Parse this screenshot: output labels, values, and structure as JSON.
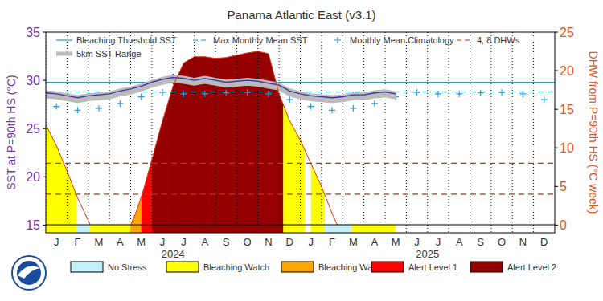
{
  "chart_data": {
    "type": "line",
    "title": "Panama Atlantic East (v3.1)",
    "y_label": "SST at P=90th HS (°C)",
    "y2_label": "DHW from P=90th HS (°C week)",
    "xlim": [
      0,
      24
    ],
    "xticks": [
      {
        "value": 0,
        "label": "J"
      },
      {
        "value": 1,
        "label": "F"
      },
      {
        "value": 2,
        "label": "M"
      },
      {
        "value": 3,
        "label": "A"
      },
      {
        "value": 4,
        "label": "M"
      },
      {
        "value": 5,
        "label": "J"
      },
      {
        "value": 6,
        "label": "J"
      },
      {
        "value": 7,
        "label": "A"
      },
      {
        "value": 8,
        "label": "S"
      },
      {
        "value": 9,
        "label": "O"
      },
      {
        "value": 10,
        "label": "N"
      },
      {
        "value": 11,
        "label": "D"
      },
      {
        "value": 12,
        "label": "J"
      },
      {
        "value": 13,
        "label": "F"
      },
      {
        "value": 14,
        "label": "M"
      },
      {
        "value": 15,
        "label": "A"
      },
      {
        "value": 16,
        "label": "M"
      },
      {
        "value": 17,
        "label": "J"
      },
      {
        "value": 18,
        "label": "J"
      },
      {
        "value": 19,
        "label": "A"
      },
      {
        "value": 20,
        "label": "S"
      },
      {
        "value": 21,
        "label": "O"
      },
      {
        "value": 22,
        "label": "N"
      },
      {
        "value": 23,
        "label": "D"
      }
    ],
    "ylim": [
      14.2,
      35
    ],
    "yticks": [
      15,
      20,
      25,
      30,
      35
    ],
    "y2lim": [
      -1,
      25
    ],
    "y2ticks": [
      0,
      5,
      10,
      15,
      20,
      25
    ],
    "grid": true,
    "year_labels": [
      {
        "label": "2024",
        "x": 6
      },
      {
        "label": "2025",
        "x": 18
      }
    ],
    "series": [
      {
        "name": "Bleaching Threshold SST",
        "type": "hline",
        "color": "#1aa6b7",
        "line_style": "solid",
        "values": [
          29.8
        ]
      },
      {
        "name": "Max Monthly Mean SST",
        "type": "hline",
        "color": "#1aa6b7",
        "line_style": "dashed",
        "values": [
          28.8
        ]
      },
      {
        "name": "Monthly Mean Climatology",
        "type": "scatter",
        "marker": "plus",
        "color": "#3399dd",
        "x": [
          0.5,
          1.5,
          2.5,
          3.5,
          4.5,
          5.5,
          6.5,
          7.5,
          8.5,
          9.5,
          10.5,
          11.5,
          12.5,
          13.5,
          14.5,
          15.5,
          16.5,
          17.5,
          18.5,
          19.5,
          20.5,
          21.5,
          22.5,
          23.5
        ],
        "values": [
          27.3,
          26.9,
          27.1,
          27.6,
          28.3,
          28.75,
          28.6,
          28.6,
          28.7,
          28.75,
          28.6,
          28.0,
          27.3,
          26.9,
          27.1,
          27.6,
          28.3,
          28.75,
          28.6,
          28.6,
          28.7,
          28.75,
          28.6,
          28.0
        ]
      },
      {
        "name": "4, 8 DHWs",
        "type": "hline",
        "axis": "y2",
        "color": "#cc3300",
        "line_style": "dashed",
        "values": [
          4,
          8
        ]
      },
      {
        "name": "5km SST Range",
        "type": "band",
        "color": "#bbbbbb",
        "x": [
          0,
          0.5,
          1,
          1.5,
          2,
          2.5,
          3,
          3.5,
          4,
          4.5,
          5,
          5.5,
          6,
          6.5,
          7,
          7.5,
          8,
          8.5,
          9,
          9.5,
          10,
          10.5,
          11,
          11.5,
          12,
          12.5,
          13,
          13.5,
          14,
          14.5,
          15,
          15.5,
          16,
          16.5
        ],
        "values": [
          28.2,
          28.1,
          27.9,
          27.7,
          27.9,
          28.0,
          28.1,
          28.4,
          28.6,
          28.9,
          29.3,
          29.6,
          29.8,
          29.7,
          29.5,
          29.7,
          29.5,
          29.3,
          29.4,
          29.5,
          29.4,
          29.2,
          29.0,
          28.4,
          28.1,
          27.9,
          27.8,
          27.7,
          27.8,
          28.0,
          28.0,
          28.2,
          28.3,
          28.1
        ],
        "values_high": [
          28.9,
          28.8,
          28.6,
          28.4,
          28.6,
          28.7,
          28.8,
          29.1,
          29.3,
          29.6,
          30.0,
          30.3,
          30.5,
          30.4,
          30.2,
          30.4,
          30.2,
          30.0,
          30.1,
          30.2,
          30.1,
          29.9,
          29.7,
          29.1,
          28.8,
          28.6,
          28.5,
          28.4,
          28.5,
          28.7,
          28.7,
          28.9,
          29.0,
          28.8
        ]
      },
      {
        "type": "line",
        "color": "#4433aa",
        "x": [
          0,
          0.5,
          1,
          1.5,
          2,
          2.5,
          3,
          3.5,
          4,
          4.5,
          5,
          5.5,
          6,
          6.5,
          7,
          7.5,
          8,
          8.5,
          9,
          9.5,
          10,
          10.5,
          11,
          11.5,
          12,
          12.5,
          13,
          13.5,
          14,
          14.5,
          15,
          15.5,
          16,
          16.5
        ],
        "values": [
          28.7,
          28.6,
          28.4,
          28.2,
          28.4,
          28.5,
          28.6,
          28.9,
          29.1,
          29.4,
          29.8,
          30.1,
          30.3,
          30.2,
          30.0,
          30.2,
          30.0,
          29.8,
          29.9,
          30.0,
          29.9,
          29.7,
          29.5,
          28.9,
          28.6,
          28.4,
          28.3,
          28.2,
          28.3,
          28.5,
          28.5,
          28.7,
          28.8,
          28.6
        ]
      },
      {
        "type": "line",
        "axis": "y2",
        "color": "#dd3311",
        "x": [
          0,
          0.5,
          1,
          1.5,
          2.1,
          4,
          4.3,
          4.6,
          5,
          5.5,
          6,
          6.5,
          7,
          7.5,
          8,
          8.5,
          9,
          9.5,
          10,
          10.5,
          11,
          11.5,
          12,
          12.5,
          13,
          13.5,
          13.75,
          16.5
        ],
        "values": [
          13,
          10.3,
          7,
          3.5,
          0,
          0,
          2,
          4.5,
          8.5,
          13.5,
          18,
          21,
          21.8,
          21.8,
          21.6,
          21.7,
          22,
          22.3,
          22.5,
          22.2,
          17,
          13.5,
          11,
          8,
          5,
          1.5,
          0,
          0
        ]
      }
    ],
    "status_legend": [
      {
        "name": "No Stress",
        "color": "#c4f0fa"
      },
      {
        "name": "Bleaching Watch",
        "color": "#ffff00"
      },
      {
        "name": "Bleaching Warning",
        "color": "#ffa500"
      },
      {
        "name": "Alert Level 1",
        "color": "#ff0000"
      },
      {
        "name": "Alert Level 2",
        "color": "#960000"
      }
    ],
    "status_periods": [
      {
        "start": 0,
        "end": 1.45,
        "status": "Bleaching Watch"
      },
      {
        "start": 1.45,
        "end": 2.1,
        "status": "No Stress"
      },
      {
        "start": 2.1,
        "end": 4.0,
        "status": "Bleaching Watch"
      },
      {
        "start": 4.0,
        "end": 4.5,
        "status": "Bleaching Warning"
      },
      {
        "start": 4.5,
        "end": 5.0,
        "status": "Alert Level 1"
      },
      {
        "start": 5.0,
        "end": 11.2,
        "status": "Alert Level 2"
      },
      {
        "start": 11.2,
        "end": 12.2,
        "status": "Bleaching Watch"
      },
      {
        "start": 12.5,
        "end": 13.15,
        "status": "Bleaching Watch"
      },
      {
        "start": 13.15,
        "end": 14.45,
        "status": "No Stress"
      },
      {
        "start": 14.45,
        "end": 16.5,
        "status": "Bleaching Watch"
      }
    ]
  }
}
